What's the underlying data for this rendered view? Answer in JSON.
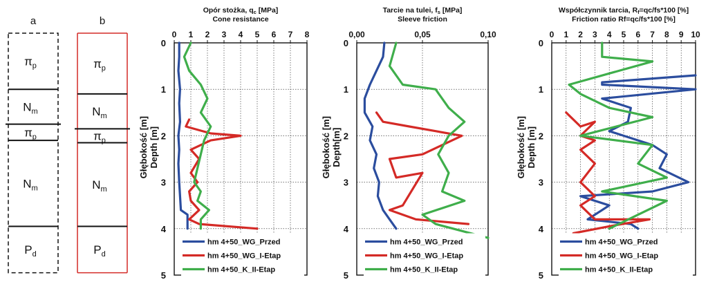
{
  "columns": [
    {
      "id": "a",
      "label": "a",
      "border_style": "dashed",
      "layers": [
        {
          "symbol": "π",
          "sub": "p",
          "top": 0.0,
          "bottom": 1.0
        },
        {
          "symbol": "N",
          "sub": "m",
          "top": 1.0,
          "bottom": 1.75
        },
        {
          "symbol": "π",
          "sub": "p",
          "top": 1.75,
          "bottom": 2.1
        },
        {
          "symbol": "N",
          "sub": "m",
          "top": 2.1,
          "bottom": 3.95
        },
        {
          "symbol": "P",
          "sub": "d",
          "top": 3.95,
          "bottom": 4.95
        }
      ]
    },
    {
      "id": "b",
      "label": "b",
      "border_style": "solid",
      "layers": [
        {
          "symbol": "π",
          "sub": "p",
          "top": 0.0,
          "bottom": 1.1
        },
        {
          "symbol": "N",
          "sub": "m",
          "top": 1.1,
          "bottom": 1.85
        },
        {
          "symbol": "π",
          "sub": "p",
          "top": 1.85,
          "bottom": 2.15
        },
        {
          "symbol": "N",
          "sub": "m",
          "top": 2.15,
          "bottom": 3.95
        },
        {
          "symbol": "P",
          "sub": "d",
          "top": 3.95,
          "bottom": 4.95
        }
      ]
    }
  ],
  "chart_data": [
    {
      "type": "line",
      "title_pl": "Opór stożka, q",
      "title_pl_sub": "c",
      "title_pl_unit": " [MPa]",
      "title_en": "Cone resistance",
      "xlabel": "",
      "ylabel_pl": "Głębokość [m]",
      "ylabel_en": "Depth [m]",
      "xlim": [
        0,
        8
      ],
      "ylim": [
        0,
        5
      ],
      "x_ticks": [
        {
          "v": 0,
          "label": "0"
        },
        {
          "v": 1,
          "label": "1"
        },
        {
          "v": 2,
          "label": "2"
        },
        {
          "v": 3,
          "label": "3"
        },
        {
          "v": 4,
          "label": "4"
        },
        {
          "v": 5,
          "label": "5"
        },
        {
          "v": 6,
          "label": "6"
        },
        {
          "v": 7,
          "label": "7"
        },
        {
          "v": 8,
          "label": "8"
        }
      ],
      "y_ticks": [
        {
          "v": 0,
          "label": "0"
        },
        {
          "v": 1,
          "label": "1"
        },
        {
          "v": 2,
          "label": "2"
        },
        {
          "v": 3,
          "label": "3"
        },
        {
          "v": 4,
          "label": "4"
        },
        {
          "v": 5,
          "label": "5"
        }
      ],
      "grid": true,
      "legend_position": "bottom",
      "series": [
        {
          "name": "hm 4+50_WG_Przed",
          "color": "#2b4d9e",
          "points": [
            [
              0.3,
              0
            ],
            [
              0.3,
              0.3
            ],
            [
              0.25,
              0.6
            ],
            [
              0.35,
              1.0
            ],
            [
              0.3,
              1.3
            ],
            [
              0.35,
              1.7
            ],
            [
              0.25,
              2.0
            ],
            [
              0.3,
              2.3
            ],
            [
              0.25,
              2.6
            ],
            [
              0.3,
              3.0
            ],
            [
              0.35,
              3.3
            ],
            [
              0.4,
              3.6
            ],
            [
              0.8,
              3.7
            ],
            [
              0.8,
              4.0
            ]
          ]
        },
        {
          "name": "hm 4+50_WG_I-Etap",
          "color": "#d42a26",
          "points": [
            [
              0.9,
              1.65
            ],
            [
              0.7,
              1.8
            ],
            [
              2.2,
              1.95
            ],
            [
              4.0,
              2.0
            ],
            [
              2.2,
              2.1
            ],
            [
              1.0,
              2.3
            ],
            [
              1.5,
              2.5
            ],
            [
              1.0,
              2.8
            ],
            [
              1.4,
              3.0
            ],
            [
              0.9,
              3.2
            ],
            [
              1.0,
              3.4
            ],
            [
              1.5,
              3.6
            ],
            [
              0.9,
              3.8
            ],
            [
              1.5,
              3.9
            ],
            [
              5.0,
              4.0
            ]
          ]
        },
        {
          "name": "hm 4+50_K_II-Etap",
          "color": "#3fae4b",
          "points": [
            [
              1.0,
              0
            ],
            [
              0.6,
              0.3
            ],
            [
              0.9,
              0.6
            ],
            [
              1.6,
              0.9
            ],
            [
              2.0,
              1.2
            ],
            [
              1.6,
              1.5
            ],
            [
              2.2,
              1.8
            ],
            [
              1.8,
              2.1
            ],
            [
              1.6,
              2.4
            ],
            [
              1.4,
              2.7
            ],
            [
              1.2,
              3.0
            ],
            [
              1.6,
              3.2
            ],
            [
              1.4,
              3.4
            ],
            [
              2.1,
              3.6
            ],
            [
              1.6,
              3.8
            ],
            [
              1.6,
              4.0
            ]
          ]
        }
      ]
    },
    {
      "type": "line",
      "title_pl": "Tarcie na tulei, f",
      "title_pl_sub": "s",
      "title_pl_unit": " [MPa]",
      "title_en": "Sleeve friction",
      "xlabel": "",
      "ylabel_pl": "Głębokość [m]",
      "ylabel_en": "Depth[m]",
      "xlim": [
        0,
        0.1
      ],
      "ylim": [
        0,
        5
      ],
      "x_ticks": [
        {
          "v": 0,
          "label": "0,00"
        },
        {
          "v": 0.05,
          "label": "0,05"
        },
        {
          "v": 0.1,
          "label": "0,10"
        }
      ],
      "y_ticks": [
        {
          "v": 0,
          "label": "0"
        },
        {
          "v": 1,
          "label": "1"
        },
        {
          "v": 2,
          "label": "2"
        },
        {
          "v": 3,
          "label": "3"
        },
        {
          "v": 4,
          "label": "4"
        },
        {
          "v": 5,
          "label": "5"
        }
      ],
      "grid": true,
      "legend_position": "bottom",
      "series": [
        {
          "name": "hm 4+50_WG_Przed",
          "color": "#2b4d9e",
          "points": [
            [
              0.021,
              0
            ],
            [
              0.02,
              0.3
            ],
            [
              0.015,
              0.6
            ],
            [
              0.01,
              0.9
            ],
            [
              0.006,
              1.2
            ],
            [
              0.006,
              1.5
            ],
            [
              0.012,
              1.8
            ],
            [
              0.01,
              2.1
            ],
            [
              0.015,
              2.4
            ],
            [
              0.013,
              2.7
            ],
            [
              0.017,
              3.0
            ],
            [
              0.016,
              3.3
            ],
            [
              0.02,
              3.6
            ],
            [
              0.025,
              3.8
            ],
            [
              0.03,
              4.0
            ]
          ]
        },
        {
          "name": "hm 4+50_WG_I-Etap",
          "color": "#d42a26",
          "points": [
            [
              0.015,
              1.5
            ],
            [
              0.02,
              1.7
            ],
            [
              0.04,
              1.8
            ],
            [
              0.06,
              1.9
            ],
            [
              0.08,
              2.0
            ],
            [
              0.05,
              2.4
            ],
            [
              0.025,
              2.5
            ],
            [
              0.03,
              2.9
            ],
            [
              0.05,
              2.8
            ],
            [
              0.035,
              3.5
            ],
            [
              0.025,
              3.6
            ],
            [
              0.045,
              3.8
            ],
            [
              0.085,
              3.9
            ]
          ]
        },
        {
          "name": "hm 4+50_K_II-Etap",
          "color": "#3fae4b",
          "points": [
            [
              0.03,
              0
            ],
            [
              0.025,
              0.5
            ],
            [
              0.035,
              0.9
            ],
            [
              0.06,
              1.0
            ],
            [
              0.07,
              1.4
            ],
            [
              0.082,
              1.7
            ],
            [
              0.07,
              2.0
            ],
            [
              0.062,
              2.4
            ],
            [
              0.07,
              2.8
            ],
            [
              0.065,
              3.2
            ],
            [
              0.082,
              3.4
            ],
            [
              0.05,
              3.7
            ],
            [
              0.06,
              3.9
            ],
            [
              0.1,
              4.2
            ]
          ]
        }
      ]
    },
    {
      "type": "line",
      "title_pl": "Współczynnik tarcia, R",
      "title_pl_sub": "f",
      "title_pl_unit": "=q",
      "title_pl_rest": "c/fs*100 [%]",
      "title_en": "Friction ratio R",
      "title_en_rest": "f=qc/fs*100 [%]",
      "xlabel": "",
      "ylabel_pl": "Głębokość [m]",
      "ylabel_en": "Depth [m]",
      "xlim": [
        0,
        10
      ],
      "ylim": [
        0,
        5
      ],
      "x_ticks": [
        {
          "v": 0,
          "label": "0"
        },
        {
          "v": 1,
          "label": "1"
        },
        {
          "v": 2,
          "label": "2"
        },
        {
          "v": 3,
          "label": "3"
        },
        {
          "v": 4,
          "label": "4"
        },
        {
          "v": 5,
          "label": "5"
        },
        {
          "v": 6,
          "label": "6"
        },
        {
          "v": 7,
          "label": "7"
        },
        {
          "v": 8,
          "label": "8"
        },
        {
          "v": 9,
          "label": "9"
        },
        {
          "v": 10,
          "label": "10"
        }
      ],
      "y_ticks": [
        {
          "v": 0,
          "label": "0"
        },
        {
          "v": 1,
          "label": "1"
        },
        {
          "v": 2,
          "label": "2"
        },
        {
          "v": 3,
          "label": "3"
        },
        {
          "v": 4,
          "label": "4"
        },
        {
          "v": 5,
          "label": "5"
        }
      ],
      "grid": true,
      "legend_position": "bottom",
      "series": [
        {
          "name": "hm 4+50_WG_Przed",
          "color": "#2b4d9e",
          "points": [
            [
              10,
              0.7
            ],
            [
              3.5,
              0.85
            ],
            [
              3.5,
              0.9
            ],
            [
              10,
              1.0
            ],
            [
              3.5,
              1.2
            ],
            [
              5.5,
              1.4
            ],
            [
              5.3,
              1.7
            ],
            [
              4.0,
              1.9
            ],
            [
              5.0,
              2.0
            ],
            [
              7.0,
              2.2
            ],
            [
              8.0,
              2.4
            ],
            [
              7.5,
              2.7
            ],
            [
              9.5,
              3.0
            ],
            [
              7.0,
              3.2
            ],
            [
              2.0,
              3.3
            ],
            [
              4.0,
              3.5
            ],
            [
              2.5,
              3.8
            ],
            [
              5.5,
              3.9
            ],
            [
              6.0,
              4.0
            ]
          ]
        },
        {
          "name": "hm 4+50_WG_I-Etap",
          "color": "#d42a26",
          "points": [
            [
              1.0,
              1.5
            ],
            [
              2.0,
              1.8
            ],
            [
              3.0,
              1.7
            ],
            [
              2.0,
              2.0
            ],
            [
              3.0,
              2.1
            ],
            [
              2.0,
              2.3
            ],
            [
              3.0,
              2.6
            ],
            [
              2.0,
              3.0
            ],
            [
              3.0,
              3.3
            ],
            [
              2.0,
              3.5
            ],
            [
              3.0,
              3.8
            ],
            [
              6.8,
              3.8
            ],
            [
              4.0,
              3.95
            ],
            [
              1.5,
              4.1
            ]
          ]
        },
        {
          "name": "hm 4+50_K_II-Etap",
          "color": "#3fae4b",
          "points": [
            [
              3.5,
              0
            ],
            [
              3.5,
              0.3
            ],
            [
              7.0,
              0.4
            ],
            [
              1.2,
              0.9
            ],
            [
              2.0,
              1.1
            ],
            [
              4.0,
              1.4
            ],
            [
              7.0,
              1.6
            ],
            [
              2.0,
              2.0
            ],
            [
              7.0,
              2.2
            ],
            [
              6.0,
              2.6
            ],
            [
              8.0,
              2.9
            ],
            [
              3.5,
              3.2
            ],
            [
              8.0,
              3.4
            ],
            [
              4.0,
              4.0
            ]
          ]
        }
      ]
    }
  ]
}
